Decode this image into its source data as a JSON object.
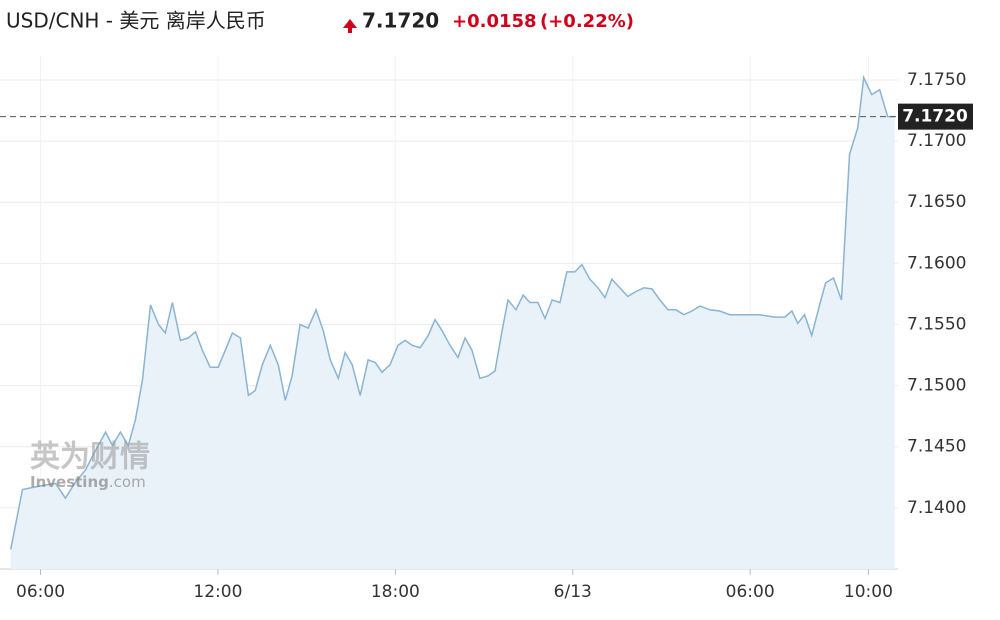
{
  "header": {
    "title": "USD/CNH - 美元 离岸人民币",
    "price": "7.1720",
    "change": "+0.0158",
    "change_pct": "(+0.22%)"
  },
  "watermark": {
    "cn": "英为财情",
    "en": "Investing",
    "domain": ".com"
  },
  "chart_data": {
    "type": "area",
    "color": "#8ab4d4",
    "fill": "#e9f1f9",
    "grid": true,
    "x": [
      4.99,
      5.39,
      6.0,
      6.51,
      6.84,
      7.18,
      7.52,
      7.86,
      8.2,
      8.43,
      8.7,
      8.97,
      9.21,
      9.45,
      9.72,
      9.99,
      10.22,
      10.46,
      10.73,
      11.0,
      11.24,
      11.47,
      11.74,
      12.01,
      12.25,
      12.49,
      12.76,
      13.03,
      13.26,
      13.5,
      13.77,
      14.04,
      14.28,
      14.51,
      14.78,
      15.05,
      15.32,
      15.56,
      15.8,
      16.07,
      16.3,
      16.54,
      16.81,
      17.08,
      17.32,
      17.55,
      17.82,
      18.09,
      18.33,
      18.57,
      18.84,
      19.11,
      19.34,
      19.58,
      19.85,
      20.12,
      20.36,
      20.59,
      20.86,
      21.14,
      21.37,
      21.61,
      21.81,
      22.08,
      22.32,
      22.55,
      22.82,
      23.06,
      23.3,
      23.57,
      23.8,
      24.07,
      24.31,
      24.58,
      24.85,
      25.09,
      25.32,
      25.59,
      25.86,
      26.14,
      26.41,
      26.68,
      26.95,
      27.22,
      27.49,
      27.76,
      28.03,
      28.3,
      28.64,
      28.97,
      29.31,
      29.82,
      30.32,
      30.83,
      31.17,
      31.41,
      31.61,
      31.84,
      32.08,
      32.35,
      32.55,
      32.82,
      33.09,
      33.36,
      33.64,
      33.84,
      34.11,
      34.38,
      34.65,
      34.89
    ],
    "values": [
      7.1366,
      7.1415,
      7.1418,
      7.142,
      7.1408,
      7.1421,
      7.1431,
      7.1447,
      7.1462,
      7.1451,
      7.1462,
      7.1451,
      7.1472,
      7.1505,
      7.1566,
      7.155,
      7.1543,
      7.1568,
      7.1537,
      7.1539,
      7.1544,
      7.1529,
      7.1515,
      7.1515,
      7.1529,
      7.1543,
      7.1539,
      7.1492,
      7.1496,
      7.1517,
      7.1533,
      7.1517,
      7.1488,
      7.1508,
      7.155,
      7.1547,
      7.1562,
      7.1545,
      7.1521,
      7.1506,
      7.1527,
      7.1517,
      7.1492,
      7.1521,
      7.1519,
      7.1511,
      7.1517,
      7.1533,
      7.1537,
      7.1533,
      7.1531,
      7.1541,
      7.1554,
      7.1545,
      7.1533,
      7.1523,
      7.1539,
      7.1529,
      7.1506,
      7.1508,
      7.1512,
      7.1545,
      7.157,
      7.1562,
      7.1574,
      7.1568,
      7.1568,
      7.1555,
      7.157,
      7.1568,
      7.1593,
      7.1593,
      7.1599,
      7.1587,
      7.158,
      7.1572,
      7.1587,
      7.158,
      7.1573,
      7.1577,
      7.158,
      7.1579,
      7.157,
      7.1562,
      7.1562,
      7.1558,
      7.1561,
      7.1565,
      7.1562,
      7.1561,
      7.1558,
      7.1558,
      7.1558,
      7.1556,
      7.1556,
      7.1561,
      7.1551,
      7.1558,
      7.1541,
      7.1566,
      7.1584,
      7.1588,
      7.157,
      7.1689,
      7.1711,
      7.1752,
      7.1738,
      7.1742,
      7.172,
      7.172
    ],
    "xlim": [
      4.9,
      35
    ],
    "xticks": [
      {
        "value": 6,
        "label": "06:00"
      },
      {
        "value": 12,
        "label": "12:00"
      },
      {
        "value": 18,
        "label": "18:00"
      },
      {
        "value": 24,
        "label": "6/13"
      },
      {
        "value": 30,
        "label": "06:00"
      },
      {
        "value": 34,
        "label": "10:00"
      }
    ],
    "ylim": [
      7.135,
      7.177
    ],
    "yticks": [
      {
        "value": 7.14,
        "label": "7.1400"
      },
      {
        "value": 7.145,
        "label": "7.1450"
      },
      {
        "value": 7.15,
        "label": "7.1500"
      },
      {
        "value": 7.155,
        "label": "7.1550"
      },
      {
        "value": 7.16,
        "label": "7.1600"
      },
      {
        "value": 7.165,
        "label": "7.1650"
      },
      {
        "value": 7.17,
        "label": "7.1700"
      },
      {
        "value": 7.175,
        "label": "7.1750"
      }
    ]
  }
}
